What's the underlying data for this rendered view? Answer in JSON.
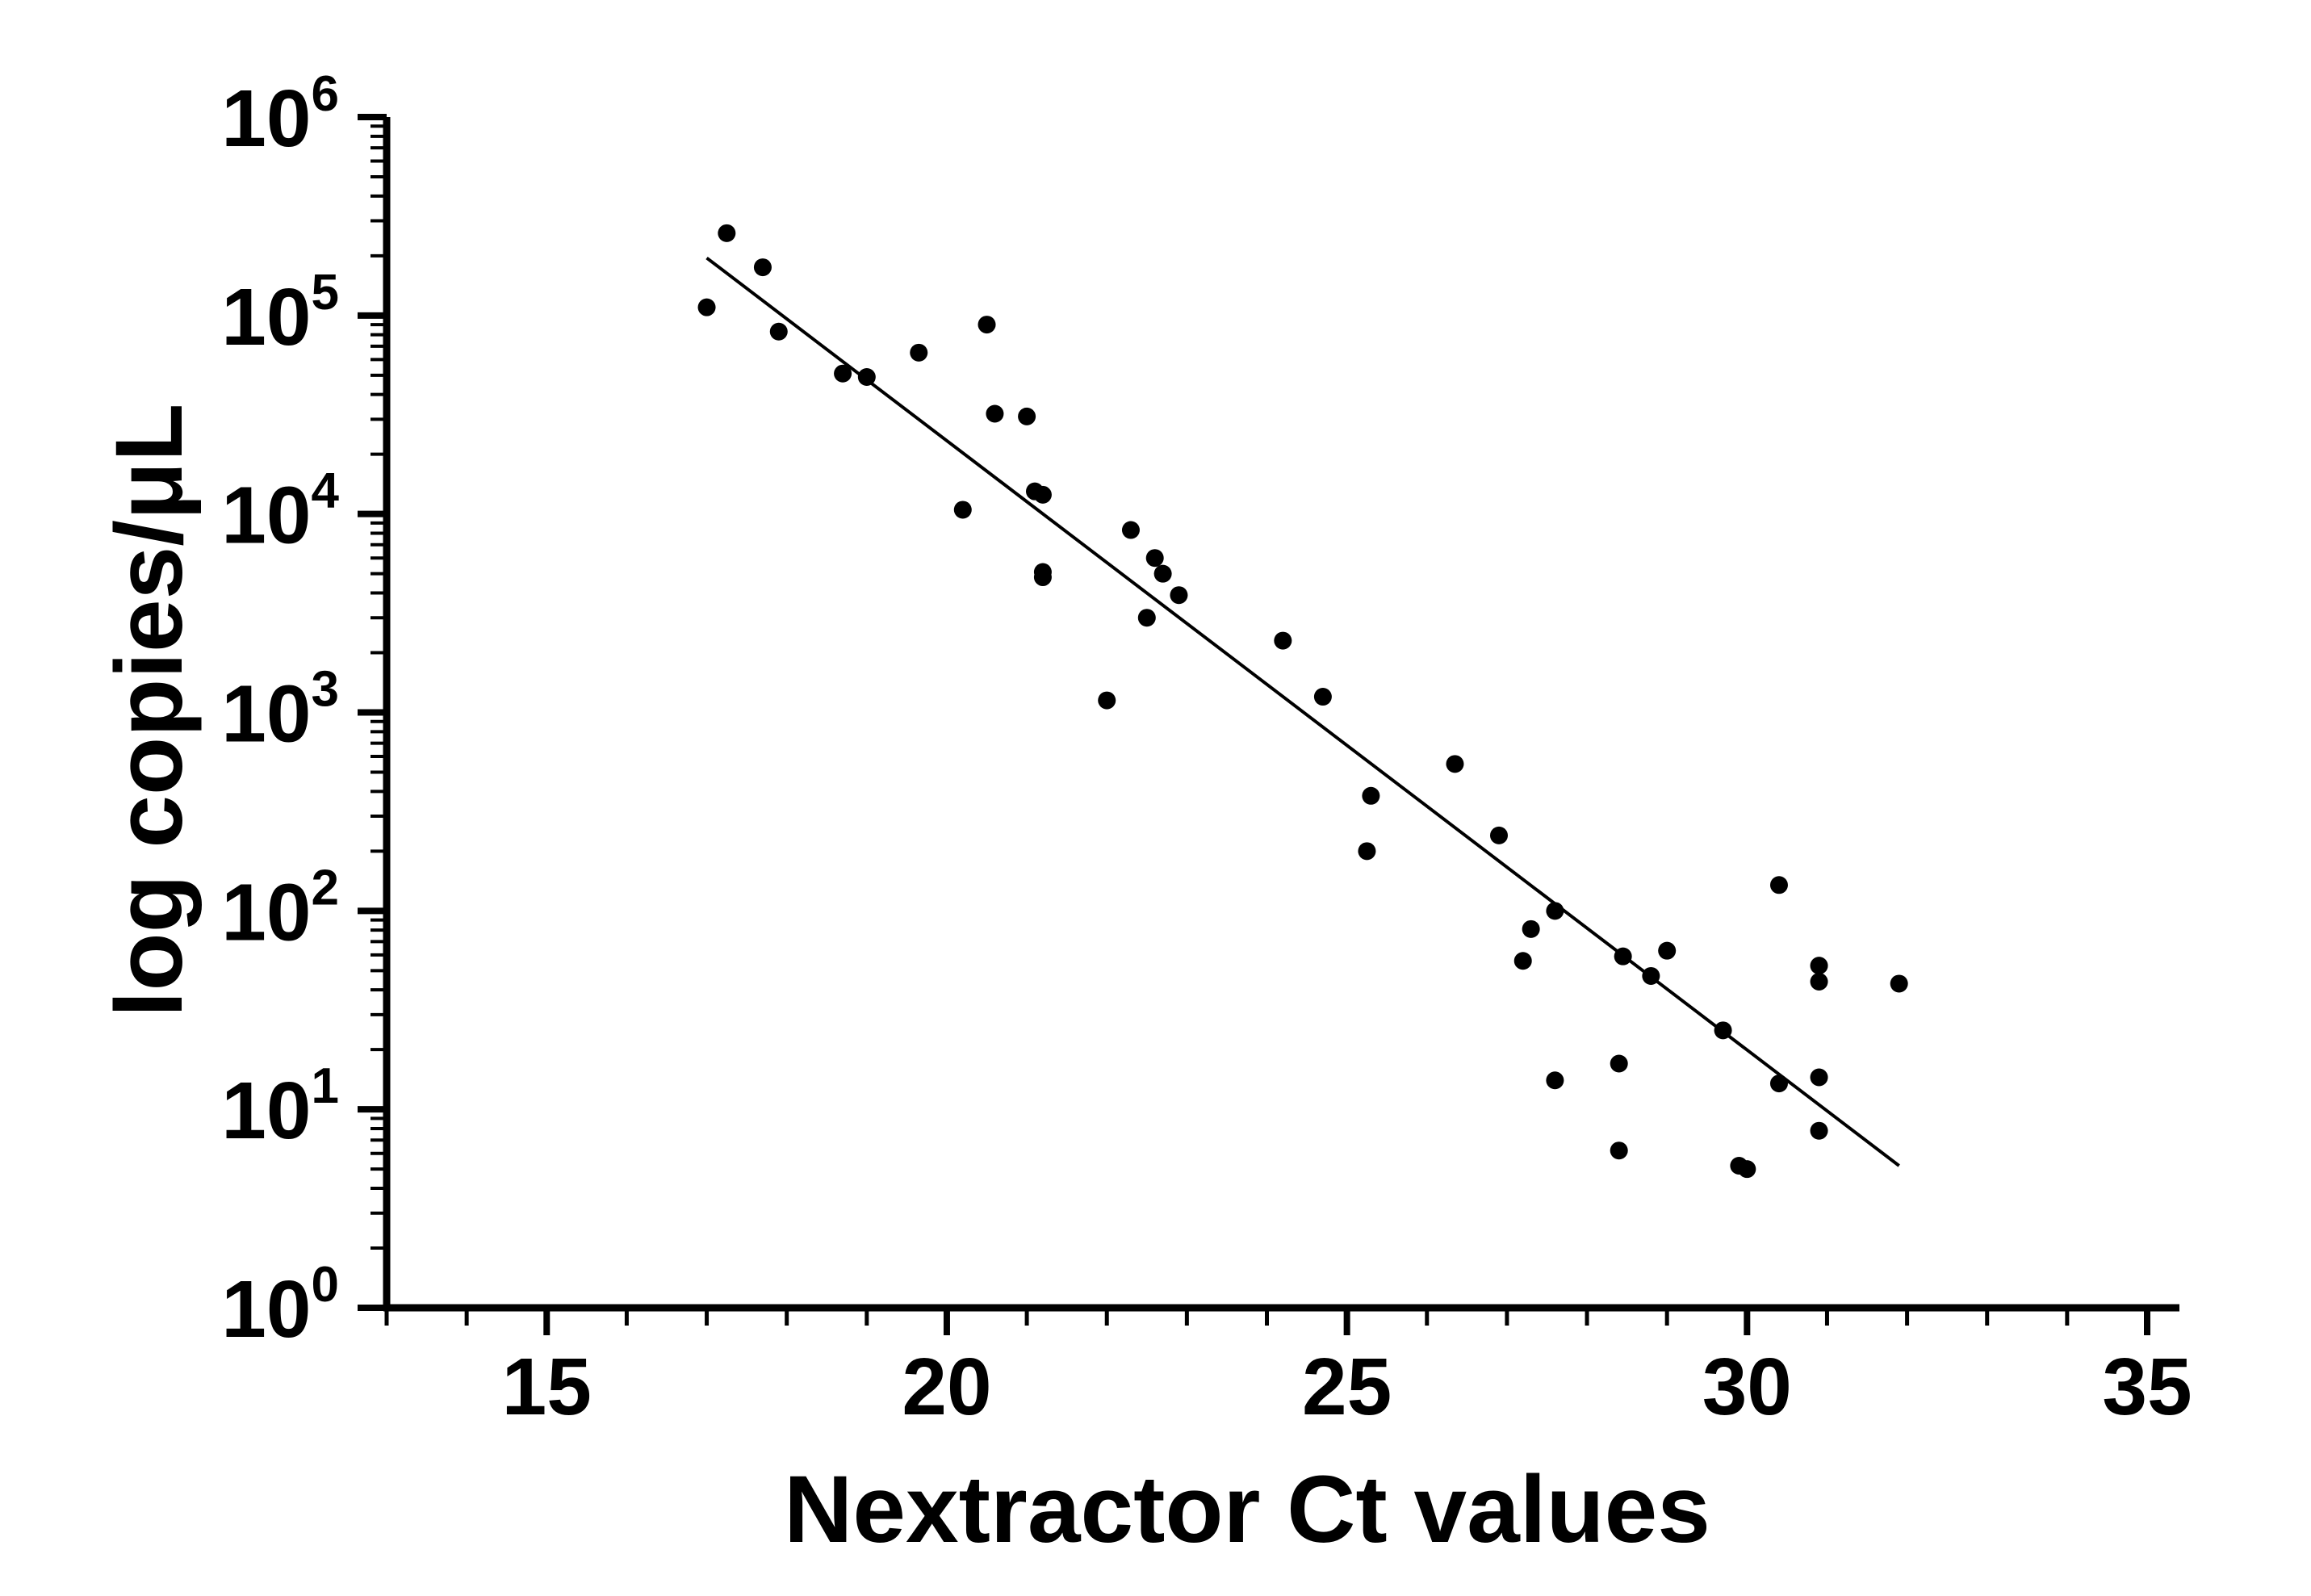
{
  "chart_data": {
    "type": "scatter",
    "title": "",
    "xlabel": "Nextractor Ct values",
    "ylabel": "log copies/μL",
    "xlim": [
      13,
      35
    ],
    "ylim": [
      1,
      1000000
    ],
    "y_scale": "log",
    "grid": false,
    "x_ticks": [
      15,
      20,
      25,
      30,
      35
    ],
    "x_tick_labels": [
      "15",
      "20",
      "25",
      "30",
      "35"
    ],
    "y_ticks": [
      1,
      10,
      100,
      1000,
      10000,
      100000,
      1000000
    ],
    "y_tick_labels": [
      {
        "base": "10",
        "exp": "0"
      },
      {
        "base": "10",
        "exp": "1"
      },
      {
        "base": "10",
        "exp": "2"
      },
      {
        "base": "10",
        "exp": "3"
      },
      {
        "base": "10",
        "exp": "4"
      },
      {
        "base": "10",
        "exp": "5"
      },
      {
        "base": "10",
        "exp": "6"
      }
    ],
    "points": [
      [
        17.0,
        110000
      ],
      [
        17.25,
        260000
      ],
      [
        17.7,
        175000
      ],
      [
        17.9,
        83000
      ],
      [
        18.7,
        51000
      ],
      [
        19.0,
        49000
      ],
      [
        19.65,
        65000
      ],
      [
        20.2,
        10500
      ],
      [
        20.5,
        90000
      ],
      [
        20.6,
        32000
      ],
      [
        21.0,
        31000
      ],
      [
        21.1,
        13000
      ],
      [
        21.2,
        12500
      ],
      [
        21.2,
        5100
      ],
      [
        21.2,
        4800
      ],
      [
        22.0,
        1150
      ],
      [
        22.3,
        8300
      ],
      [
        22.5,
        3000
      ],
      [
        22.6,
        6000
      ],
      [
        22.7,
        5000
      ],
      [
        22.9,
        3900
      ],
      [
        24.2,
        2300
      ],
      [
        24.7,
        1200
      ],
      [
        25.25,
        200
      ],
      [
        25.3,
        380
      ],
      [
        26.35,
        550
      ],
      [
        26.9,
        240
      ],
      [
        27.2,
        56
      ],
      [
        27.3,
        81
      ],
      [
        27.6,
        100
      ],
      [
        27.6,
        14
      ],
      [
        28.4,
        6.2
      ],
      [
        28.4,
        17
      ],
      [
        28.45,
        59
      ],
      [
        28.8,
        47
      ],
      [
        29.0,
        63
      ],
      [
        29.7,
        25
      ],
      [
        29.9,
        5.2
      ],
      [
        30.0,
        5.0
      ],
      [
        30.4,
        13.5
      ],
      [
        30.4,
        135
      ],
      [
        30.9,
        7.8
      ],
      [
        30.9,
        14.5
      ],
      [
        30.9,
        44
      ],
      [
        30.9,
        53
      ],
      [
        31.9,
        43
      ]
    ],
    "fit_line": {
      "x": [
        17.0,
        31.9
      ],
      "y": [
        195000,
        5.2
      ]
    }
  }
}
